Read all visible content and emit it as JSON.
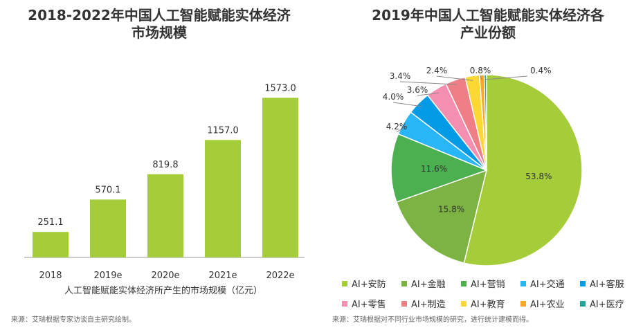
{
  "left_chart": {
    "title_line1": "2018-2022年中国人工智能赋能实体经济",
    "title_line2": "市场规模",
    "source": "来源：艾瑞根据专家访谈自主研究绘制。",
    "bar_color": "#a4cd39"
  },
  "right_chart": {
    "title_line1": "2019年中国人工智能赋能实体经济各",
    "title_line2": "产业份额",
    "source": "来源：艾瑞根据对不同行业市场规模的研究，进行统计建模而得。"
  },
  "chart_data": [
    {
      "type": "bar",
      "title": "2018-2022年中国人工智能赋能实体经济市场规模",
      "categories": [
        "2018",
        "2019e",
        "2020e",
        "2021e",
        "2022e"
      ],
      "values": [
        251.1,
        570.1,
        819.8,
        1157.0,
        1573.0
      ],
      "value_labels": [
        "251.1",
        "570.1",
        "819.8",
        "1157.0",
        "1573.0"
      ],
      "xlabel": "人工智能赋能实体经济所产生的市场规模（亿元）",
      "ylabel": "",
      "ylim": [
        0,
        1800
      ],
      "grid": false,
      "color": "#a4cd39"
    },
    {
      "type": "pie",
      "title": "2019年中国人工智能赋能实体经济各产业份额",
      "labels": [
        "AI+安防",
        "AI+金融",
        "AI+营销",
        "AI+交通",
        "AI+客服",
        "AI+零售",
        "AI+制造",
        "AI+教育",
        "AI+农业",
        "AI+医疗"
      ],
      "values": [
        53.8,
        15.8,
        11.6,
        4.2,
        4.0,
        3.6,
        3.4,
        2.4,
        0.8,
        0.4
      ],
      "value_labels": [
        "53.8%",
        "15.8%",
        "11.6%",
        "4.2%",
        "4.0%",
        "3.6%",
        "3.4%",
        "2.4%",
        "0.8%",
        "0.4%"
      ],
      "colors": [
        "#a4cd39",
        "#7cb342",
        "#4caf50",
        "#29b6f6",
        "#039be5",
        "#f48fb1",
        "#ef7f86",
        "#fdd835",
        "#f9a825",
        "#26a69a"
      ],
      "legend_position": "bottom"
    }
  ]
}
